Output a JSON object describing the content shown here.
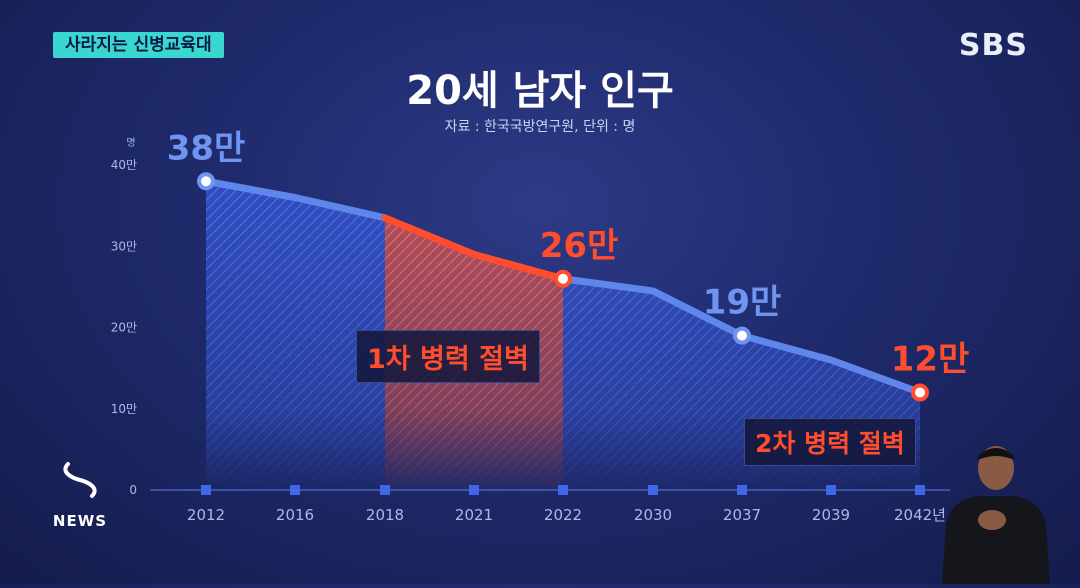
{
  "tag": "사라지는 신병교육대",
  "logo": "SBS",
  "news_label": "NEWS",
  "chart_data": {
    "type": "area",
    "title": "20세 남자 인구",
    "source": "자료 : 한국국방연구원, 단위 : 명",
    "y_unit_label": "명",
    "categories": [
      "2012",
      "2016",
      "2018",
      "2021",
      "2022",
      "2030",
      "2037",
      "2039",
      "2042년"
    ],
    "values": [
      38,
      36,
      33.5,
      29,
      26,
      24.5,
      19,
      16,
      12
    ],
    "value_unit": "만",
    "ylim": [
      0,
      40
    ],
    "y_ticks": [
      {
        "value": 0,
        "label": "0"
      },
      {
        "value": 10,
        "label": "10만"
      },
      {
        "value": 20,
        "label": "20만"
      },
      {
        "value": 30,
        "label": "30만"
      },
      {
        "value": 40,
        "label": "40만"
      }
    ],
    "highlighted_points": [
      {
        "index": 0,
        "label": "38만",
        "color": "#6f95f0"
      },
      {
        "index": 4,
        "label": "26만",
        "color": "#ff4d2e"
      },
      {
        "index": 6,
        "label": "19만",
        "color": "#6f95f0"
      },
      {
        "index": 8,
        "label": "12만",
        "color": "#ff4d2e"
      }
    ],
    "highlight_range": {
      "from_index": 2,
      "to_index": 4,
      "color": "#ff4d2e"
    },
    "annotations": [
      {
        "text": "1차 병력 절벽",
        "color": "#ff4d2e"
      },
      {
        "text": "2차 병력 절벽",
        "color": "#ff4d2e"
      }
    ],
    "colors": {
      "line": "#5f86ea",
      "fill": "#3a63dc",
      "highlight": "#ff4d2e",
      "axis": "#5170d8"
    }
  }
}
